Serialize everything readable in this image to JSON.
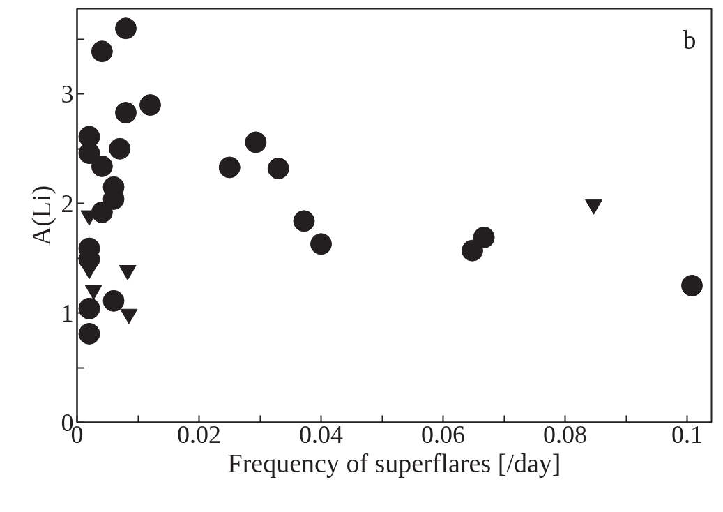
{
  "chart_data": {
    "type": "scatter",
    "xlabel": "Frequency of superflares [/day]",
    "ylabel": "A(Li)",
    "annotations": [
      "b"
    ],
    "xlim": [
      0,
      0.104
    ],
    "ylim": [
      0,
      3.78
    ],
    "xticks": [
      0,
      {
        "value": 0.01,
        "label": null
      },
      0.02,
      {
        "value": 0.03,
        "label": null
      },
      0.04,
      {
        "value": 0.05,
        "label": null
      },
      0.06,
      {
        "value": 0.07,
        "label": null
      },
      0.08,
      {
        "value": 0.09,
        "label": null
      },
      0.1
    ],
    "yticks": [
      0,
      {
        "value": 0.5,
        "label": null
      },
      1,
      {
        "value": 1.5,
        "label": null
      },
      2,
      {
        "value": 2.5,
        "label": null
      },
      3,
      {
        "value": 3.5,
        "label": null
      }
    ],
    "grid": false,
    "series": [
      {
        "color": "#231f20",
        "marker": "circle",
        "x": [
          0.008,
          0.0041,
          0.008,
          0.012,
          0.002,
          0.002,
          0.007,
          0.0041,
          0.025,
          0.006,
          0.006,
          0.0041,
          0.002,
          0.002,
          0.006,
          0.002,
          0.002,
          0.0293,
          0.033,
          0.0372,
          0.04,
          0.0648,
          0.0667,
          0.1008
        ],
        "values": [
          3.6,
          3.39,
          2.83,
          2.9,
          2.61,
          2.46,
          2.5,
          2.34,
          2.33,
          2.15,
          2.04,
          1.92,
          1.59,
          1.49,
          1.11,
          1.04,
          0.81,
          2.56,
          2.32,
          1.84,
          1.63,
          1.57,
          1.69,
          1.25
        ]
      },
      {
        "color": "#231f20",
        "marker": "triangle",
        "x": [
          0.002,
          0.002,
          0.0083,
          0.0027,
          0.0085,
          0.0847
        ],
        "values": [
          1.89,
          1.4,
          1.39,
          1.21,
          0.99,
          1.99
        ]
      }
    ]
  }
}
